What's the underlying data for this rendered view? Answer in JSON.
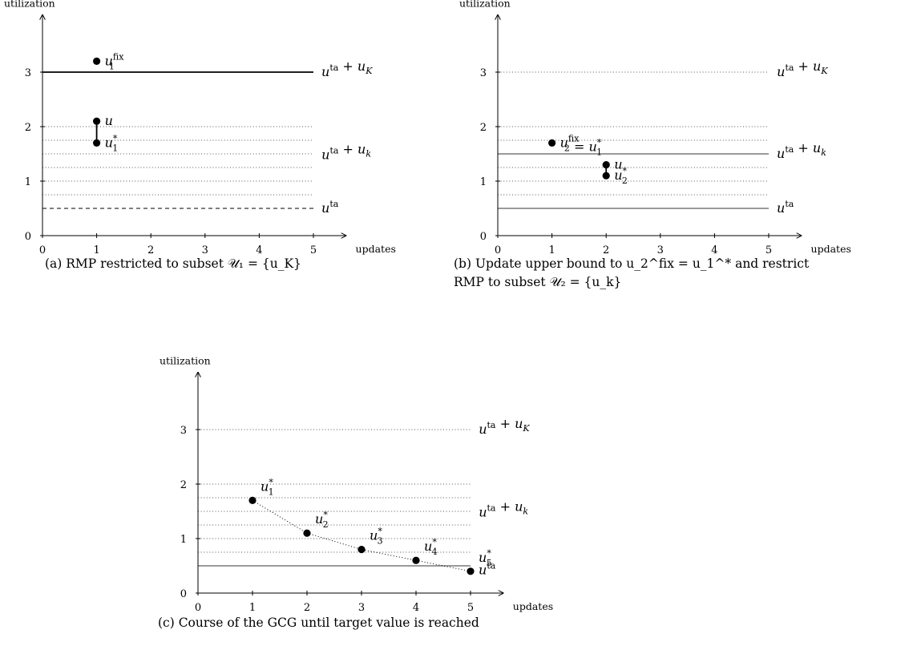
{
  "chart_data": [
    {
      "type": "scatter",
      "caption": "(a) RMP restricted to subset 𝒰₁ = {u_K}",
      "xlabel": "updates",
      "ylabel": "utilization",
      "xlim": [
        0,
        5
      ],
      "ylim": [
        0,
        3
      ],
      "xticks": [
        0,
        1,
        2,
        3,
        4,
        5
      ],
      "yticks": [
        0,
        1,
        2,
        3
      ],
      "dotted_levels": [
        0.75,
        1.0,
        1.25,
        1.5,
        1.75,
        2.0
      ],
      "dotted_to": 5,
      "lines": [
        {
          "y": 3.0,
          "style": "solid",
          "color": "#000000",
          "from": 0,
          "to": 5,
          "label": "u^ta + u_K",
          "label_y": 3.0
        },
        {
          "y": 0.5,
          "style": "dashed",
          "color": "#000000",
          "from": 0,
          "to": 5,
          "label": "u^ta",
          "label_y": 0.5
        }
      ],
      "free_labels": [
        {
          "text": "u^ta + u_k",
          "x": 5.15,
          "y": 1.48,
          "color": "#000000"
        }
      ],
      "points": [
        {
          "x": 1,
          "y": 3.2,
          "label": "u_1^fix"
        },
        {
          "x": 1,
          "y": 2.1,
          "label": "u"
        },
        {
          "x": 1,
          "y": 1.7,
          "label": "u_1^*"
        }
      ],
      "connectors": [
        [
          1,
          2.1,
          1,
          1.7
        ]
      ]
    },
    {
      "type": "scatter",
      "caption_line1": "(b) Update upper bound to u_2^fix = u_1^* and restrict",
      "caption_line2": "RMP to subset 𝒰₂ = {u_k}",
      "xlabel": "updates",
      "ylabel": "utilization",
      "xlim": [
        0,
        5
      ],
      "ylim": [
        0,
        3
      ],
      "xticks": [
        0,
        1,
        2,
        3,
        4,
        5
      ],
      "yticks": [
        0,
        1,
        2,
        3
      ],
      "dotted_levels": [
        0.75,
        1.0,
        1.25,
        1.75,
        2.0,
        3.0
      ],
      "dotted_to": 5,
      "lines": [
        {
          "y": 1.5,
          "style": "solid",
          "color": "#8c8c8c",
          "from": 0,
          "to": 5,
          "label": "u^ta + u_k",
          "label_y": 1.5
        },
        {
          "y": 0.5,
          "style": "solid",
          "color": "#8c8c8c",
          "from": 0,
          "to": 5,
          "label": "u^ta",
          "label_y": 0.5
        }
      ],
      "free_labels": [
        {
          "text": "u^ta + u_K",
          "x": 5.15,
          "y": 3.0,
          "color": "#8c8c8c"
        }
      ],
      "points": [
        {
          "x": 1,
          "y": 1.7,
          "label": "u_2^fix = u_1^*"
        },
        {
          "x": 2,
          "y": 1.3,
          "label": "u"
        },
        {
          "x": 2,
          "y": 1.1,
          "label": "u_2^*"
        }
      ],
      "connectors": [
        [
          2,
          1.3,
          2,
          1.1
        ]
      ]
    },
    {
      "type": "line",
      "caption": "(c) Course of the GCG until target value is reached",
      "xlabel": "updates",
      "ylabel": "utilization",
      "xlim": [
        0,
        5
      ],
      "ylim": [
        0,
        3
      ],
      "xticks": [
        0,
        1,
        2,
        3,
        4,
        5
      ],
      "yticks": [
        0,
        1,
        2,
        3
      ],
      "dotted_levels": [
        0.75,
        1.0,
        1.25,
        1.5,
        1.75,
        2.0,
        3.0
      ],
      "dotted_to": 5,
      "lines": [
        {
          "y": 0.5,
          "style": "solid",
          "color": "#8c8c8c",
          "from": 0,
          "to": 5,
          "label": "u^ta",
          "label_y": 0.42
        }
      ],
      "free_labels": [
        {
          "text": "u^ta + u_K",
          "x": 5.15,
          "y": 3.0,
          "color": "#8c8c8c"
        },
        {
          "text": "u^ta + u_k",
          "x": 5.15,
          "y": 1.48,
          "color": "#8c8c8c"
        }
      ],
      "series": [
        {
          "x": [
            1,
            2,
            3,
            4,
            5
          ],
          "y": [
            1.7,
            1.1,
            0.8,
            0.6,
            0.4
          ],
          "labels": [
            "u_1^*",
            "u_2^*",
            "u_3^*",
            "u_4^*",
            "u_5^*"
          ]
        }
      ]
    }
  ]
}
